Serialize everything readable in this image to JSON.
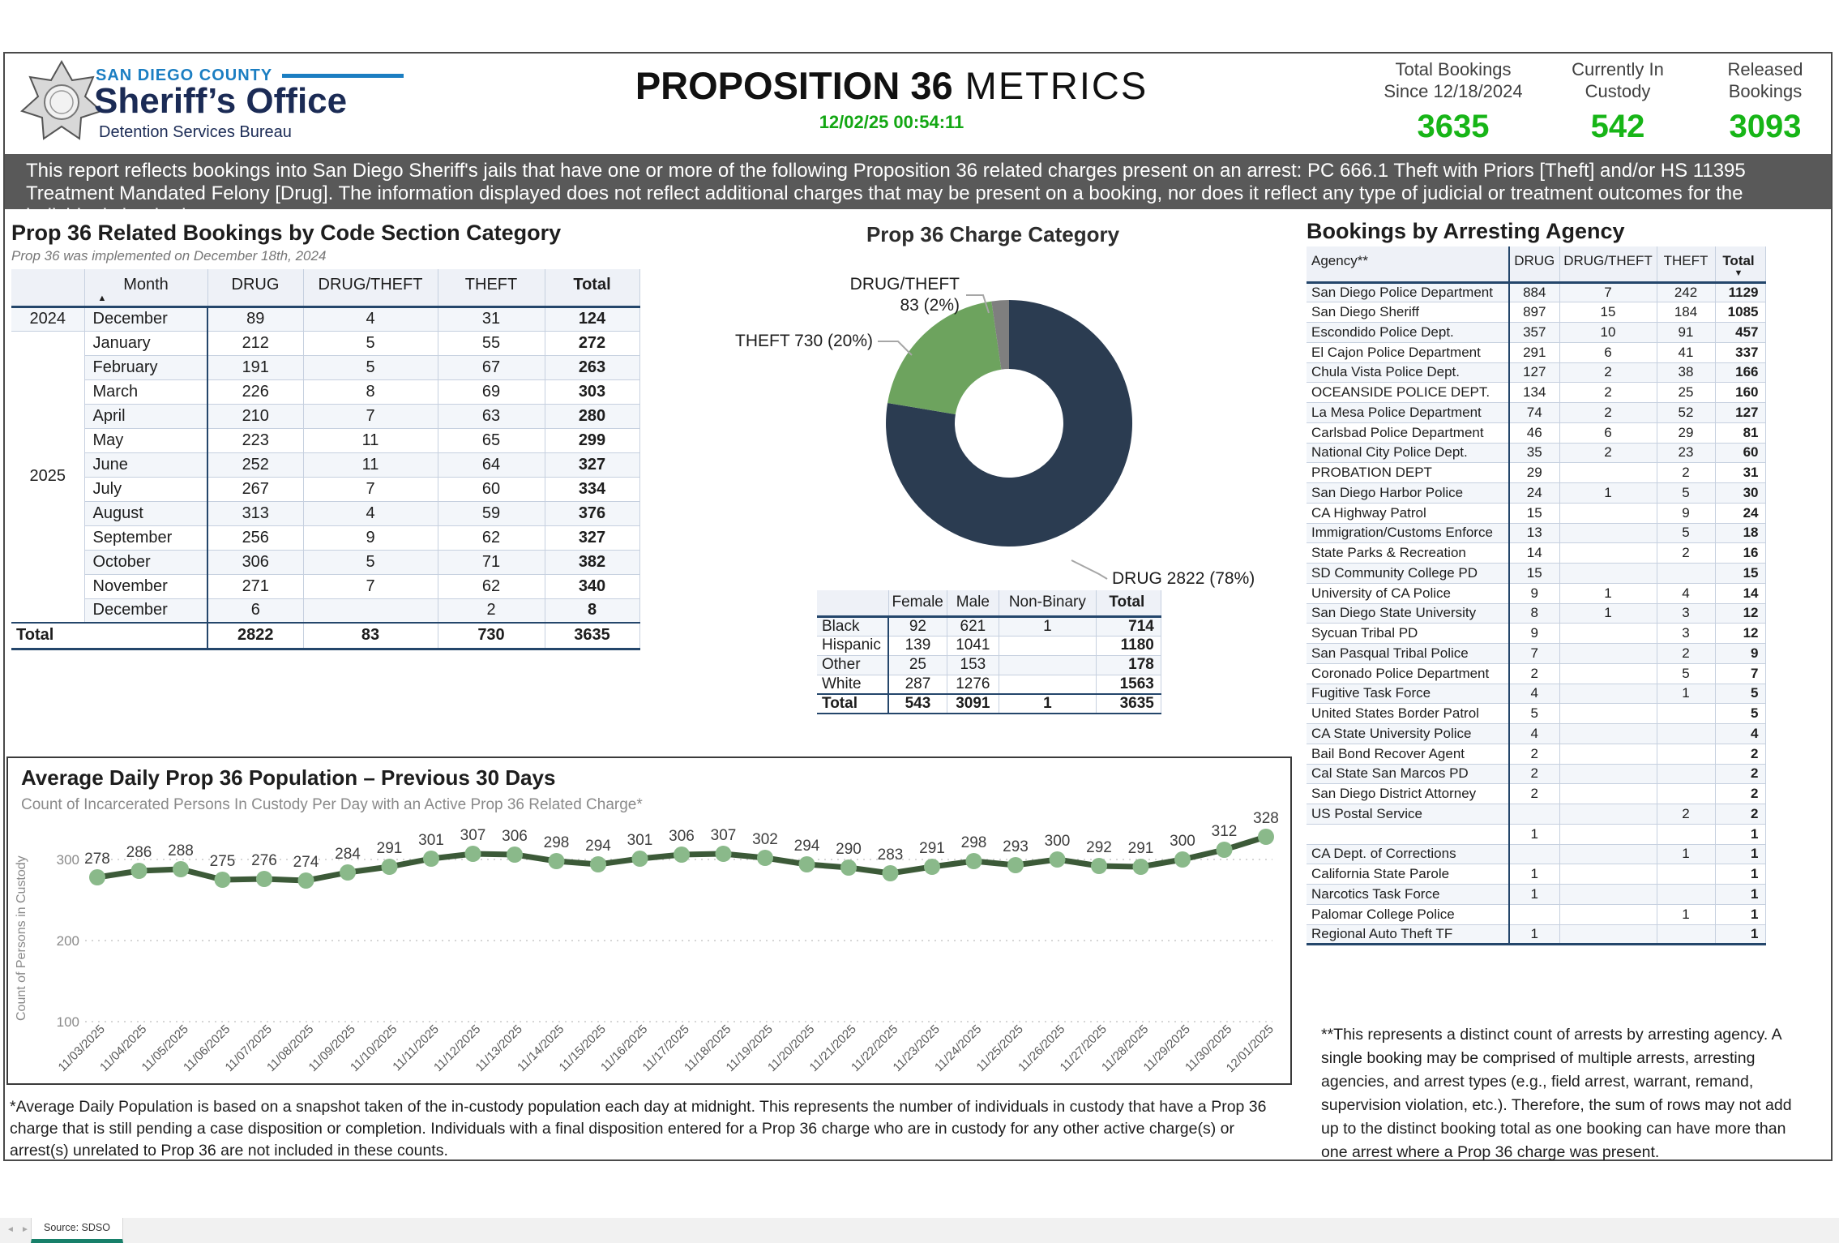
{
  "header": {
    "agency_line1": "SAN DIEGO COUNTY",
    "agency_line2": "Sheriff’s Office",
    "agency_line3": "Detention Services Bureau",
    "title_bold": "PROPOSITION 36",
    "title_light": " METRICS",
    "timestamp": "12/02/25 00:54:11",
    "stats": [
      {
        "label1": "Total Bookings",
        "label2": "Since 12/18/2024",
        "value": "3635"
      },
      {
        "label1": "Currently In",
        "label2": "Custody",
        "value": "542"
      },
      {
        "label1": "Released",
        "label2": "Bookings",
        "value": "3093"
      }
    ]
  },
  "banner": "This report reflects bookings into San Diego Sheriff's jails that have one or more of the following Proposition 36 related charges present on an arrest: PC 666.1 Theft with Priors [Theft] and/or HS 11395 Treatment Mandated Felony [Drug]. The information displayed does not reflect additional charges that may be present on a booking, nor does it reflect any type of judicial or treatment outcomes for the individuals booked.",
  "colors": {
    "accent_green": "#17b517",
    "banner_gray": "#595959",
    "table_accent_navy": "#24466b",
    "tab_underline_teal": "#17806a"
  },
  "chart_data": [
    {
      "type": "table",
      "title": "Prop 36 Related Bookings by Code Section Category",
      "subtitle": "Prop 36 was implemented on December 18th, 2024",
      "columns": [
        "",
        "Month",
        "DRUG",
        "DRUG/THEFT",
        "THEFT",
        "Total"
      ],
      "sort_column": "Month",
      "sort_icon": "▲",
      "rows": [
        [
          "2024",
          "December",
          "89",
          "4",
          "31",
          "124"
        ],
        [
          "2025",
          "January",
          "212",
          "5",
          "55",
          "272"
        ],
        [
          "",
          "February",
          "191",
          "5",
          "67",
          "263"
        ],
        [
          "",
          "March",
          "226",
          "8",
          "69",
          "303"
        ],
        [
          "",
          "April",
          "210",
          "7",
          "63",
          "280"
        ],
        [
          "",
          "May",
          "223",
          "11",
          "65",
          "299"
        ],
        [
          "",
          "June",
          "252",
          "11",
          "64",
          "327"
        ],
        [
          "",
          "July",
          "267",
          "7",
          "60",
          "334"
        ],
        [
          "",
          "August",
          "313",
          "4",
          "59",
          "376"
        ],
        [
          "",
          "September",
          "256",
          "9",
          "62",
          "327"
        ],
        [
          "",
          "October",
          "306",
          "5",
          "71",
          "382"
        ],
        [
          "",
          "November",
          "271",
          "7",
          "62",
          "340"
        ],
        [
          "",
          "December",
          "6",
          "",
          "2",
          "8"
        ]
      ],
      "total_row": [
        "Total",
        "2822",
        "83",
        "730",
        "3635"
      ]
    },
    {
      "type": "pie",
      "title": "Prop 36 Charge Category",
      "donut": true,
      "slices": [
        {
          "label": "DRUG",
          "value": 2822,
          "pct": "78%",
          "color": "#2b3c51",
          "callout_lines": [
            "DRUG 2822 (78%)"
          ]
        },
        {
          "label": "THEFT",
          "value": 730,
          "pct": "20%",
          "color": "#6da35e",
          "callout_lines": [
            "THEFT 730 (20%)"
          ]
        },
        {
          "label": "DRUG/THEFT",
          "value": 83,
          "pct": "2%",
          "color": "#7f7f7f",
          "callout_lines": [
            "DRUG/THEFT",
            "83 (2%)"
          ]
        }
      ]
    },
    {
      "type": "table",
      "title": "",
      "columns": [
        "",
        "Female",
        "Male",
        "Non-Binary",
        "Total"
      ],
      "rows": [
        [
          "Black",
          "92",
          "621",
          "1",
          "714"
        ],
        [
          "Hispanic",
          "139",
          "1041",
          "",
          "1180"
        ],
        [
          "Other",
          "25",
          "153",
          "",
          "178"
        ],
        [
          "White",
          "287",
          "1276",
          "",
          "1563"
        ]
      ],
      "total_row": [
        "Total",
        "543",
        "3091",
        "1",
        "3635"
      ]
    },
    {
      "type": "table",
      "title": "Bookings by Arresting Agency",
      "columns": [
        "Agency**",
        "DRUG",
        "DRUG/THEFT",
        "THEFT",
        "Total"
      ],
      "sort_column": "Total",
      "sort_icon": "▼",
      "rows": [
        [
          "San Diego Police Department",
          "884",
          "7",
          "242",
          "1129"
        ],
        [
          "San Diego Sheriff",
          "897",
          "15",
          "184",
          "1085"
        ],
        [
          "Escondido Police Dept.",
          "357",
          "10",
          "91",
          "457"
        ],
        [
          "El Cajon Police Department",
          "291",
          "6",
          "41",
          "337"
        ],
        [
          "Chula Vista Police Dept.",
          "127",
          "2",
          "38",
          "166"
        ],
        [
          "OCEANSIDE POLICE DEPT.",
          "134",
          "2",
          "25",
          "160"
        ],
        [
          "La Mesa Police Department",
          "74",
          "2",
          "52",
          "127"
        ],
        [
          "Carlsbad Police Department",
          "46",
          "6",
          "29",
          "81"
        ],
        [
          "National City Police Dept.",
          "35",
          "2",
          "23",
          "60"
        ],
        [
          "PROBATION DEPT",
          "29",
          "",
          "2",
          "31"
        ],
        [
          "San Diego Harbor Police",
          "24",
          "1",
          "5",
          "30"
        ],
        [
          "CA Highway Patrol",
          "15",
          "",
          "9",
          "24"
        ],
        [
          "Immigration/Customs Enforce",
          "13",
          "",
          "5",
          "18"
        ],
        [
          "State Parks & Recreation",
          "14",
          "",
          "2",
          "16"
        ],
        [
          "SD Community College PD",
          "15",
          "",
          "",
          "15"
        ],
        [
          "University of CA Police",
          "9",
          "1",
          "4",
          "14"
        ],
        [
          "San Diego State University",
          "8",
          "1",
          "3",
          "12"
        ],
        [
          "Sycuan Tribal PD",
          "9",
          "",
          "3",
          "12"
        ],
        [
          "San Pasqual Tribal Police",
          "7",
          "",
          "2",
          "9"
        ],
        [
          "Coronado Police Department",
          "2",
          "",
          "5",
          "7"
        ],
        [
          "Fugitive Task Force",
          "4",
          "",
          "1",
          "5"
        ],
        [
          "United States Border Patrol",
          "5",
          "",
          "",
          "5"
        ],
        [
          "CA State University Police",
          "4",
          "",
          "",
          "4"
        ],
        [
          "Bail Bond Recover Agent",
          "2",
          "",
          "",
          "2"
        ],
        [
          "Cal State San Marcos PD",
          "2",
          "",
          "",
          "2"
        ],
        [
          "San Diego District Attorney",
          "2",
          "",
          "",
          "2"
        ],
        [
          "US Postal Service",
          "",
          "",
          "2",
          "2"
        ],
        [
          "",
          "1",
          "",
          "",
          "1"
        ],
        [
          "CA Dept. of Corrections",
          "",
          "",
          "1",
          "1"
        ],
        [
          "California State Parole",
          "1",
          "",
          "",
          "1"
        ],
        [
          "Narcotics Task Force",
          "1",
          "",
          "",
          "1"
        ],
        [
          "Palomar College Police",
          "",
          "",
          "1",
          "1"
        ],
        [
          "Regional Auto Theft TF",
          "1",
          "",
          "",
          "1"
        ]
      ]
    },
    {
      "type": "line",
      "title": "Average Daily Prop 36 Population – Previous 30 Days",
      "subtitle": "Count of Incarcerated Persons In Custody Per Day with an Active Prop 36 Related Charge*",
      "ylabel": "Count of Persons in Custody",
      "yticks": [
        100,
        200,
        300
      ],
      "line_color": "#3c5a38",
      "marker_color": "#8ab98a",
      "x": [
        "11/03/2025",
        "11/04/2025",
        "11/05/2025",
        "11/06/2025",
        "11/07/2025",
        "11/08/2025",
        "11/09/2025",
        "11/10/2025",
        "11/11/2025",
        "11/12/2025",
        "11/13/2025",
        "11/14/2025",
        "11/15/2025",
        "11/16/2025",
        "11/17/2025",
        "11/18/2025",
        "11/19/2025",
        "11/20/2025",
        "11/21/2025",
        "11/22/2025",
        "11/23/2025",
        "11/24/2025",
        "11/25/2025",
        "11/26/2025",
        "11/27/2025",
        "11/28/2025",
        "11/29/2025",
        "11/30/2025",
        "12/01/2025"
      ],
      "values": [
        278,
        286,
        288,
        275,
        276,
        274,
        284,
        291,
        301,
        307,
        306,
        298,
        294,
        301,
        306,
        307,
        302,
        294,
        290,
        283,
        291,
        298,
        293,
        300,
        292,
        291,
        300,
        312,
        328
      ]
    }
  ],
  "footnotes": {
    "left": "*Average Daily Population is based on a snapshot taken of the in-custody population each day at midnight. This represents the number of individuals in custody that have a Prop 36 charge that is still pending a case disposition or completion. Individuals with a final disposition entered for a Prop 36 charge who are in custody for any other active charge(s) or arrest(s) unrelated to Prop 36 are not included in these counts.",
    "right": "**This represents a distinct count of arrests by arresting agency. A single booking may be comprised of multiple arrests, arresting agencies, and arrest types (e.g., field arrest, warrant, remand, supervision violation, etc.). Therefore, the sum of rows may not add up to the distinct booking total as one booking can have more than one arrest where a Prop 36 charge was present."
  },
  "footer": {
    "prev_icon": "◄",
    "next_icon": "►",
    "tab_label": "Source: SDSO"
  }
}
